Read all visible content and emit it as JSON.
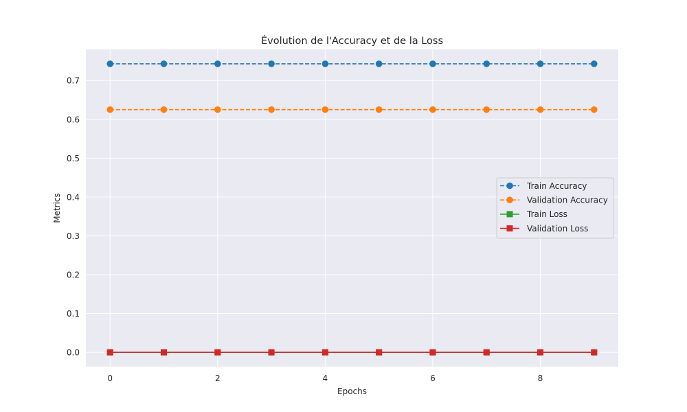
{
  "chart_data": {
    "type": "line",
    "title": "Évolution de l'Accuracy et de la Loss",
    "xlabel": "Epochs",
    "ylabel": "Metrics",
    "x": [
      0,
      1,
      2,
      3,
      4,
      5,
      6,
      7,
      8,
      9
    ],
    "xlim": [
      -0.45,
      9.45
    ],
    "ylim": [
      -0.037,
      0.78
    ],
    "xticks": [
      0,
      2,
      4,
      6,
      8
    ],
    "yticks": [
      0.0,
      0.1,
      0.2,
      0.3,
      0.4,
      0.5,
      0.6,
      0.7
    ],
    "ytick_labels": [
      "0.0",
      "0.1",
      "0.2",
      "0.3",
      "0.4",
      "0.5",
      "0.6",
      "0.7"
    ],
    "xtick_labels": [
      "0",
      "2",
      "4",
      "6",
      "8"
    ],
    "grid": true,
    "background": "#eaeaf2",
    "legend_position": "center-right",
    "series": [
      {
        "name": "Train Accuracy",
        "values": [
          0.743,
          0.743,
          0.743,
          0.743,
          0.743,
          0.743,
          0.743,
          0.743,
          0.743,
          0.743
        ],
        "color": "#1f77b4",
        "linestyle": "dashed",
        "marker": "circle"
      },
      {
        "name": "Validation Accuracy",
        "values": [
          0.625,
          0.625,
          0.625,
          0.625,
          0.625,
          0.625,
          0.625,
          0.625,
          0.625,
          0.625
        ],
        "color": "#ff7f0e",
        "linestyle": "dashed",
        "marker": "circle"
      },
      {
        "name": "Train Loss",
        "values": [
          0.0,
          0.0,
          0.0,
          0.0,
          0.0,
          0.0,
          0.0,
          0.0,
          0.0,
          0.0
        ],
        "color": "#2ca02c",
        "linestyle": "solid",
        "marker": "square"
      },
      {
        "name": "Validation Loss",
        "values": [
          0.0,
          0.0,
          0.0,
          0.0,
          0.0,
          0.0,
          0.0,
          0.0,
          0.0,
          0.0
        ],
        "color": "#d62728",
        "linestyle": "solid",
        "marker": "square"
      }
    ]
  }
}
